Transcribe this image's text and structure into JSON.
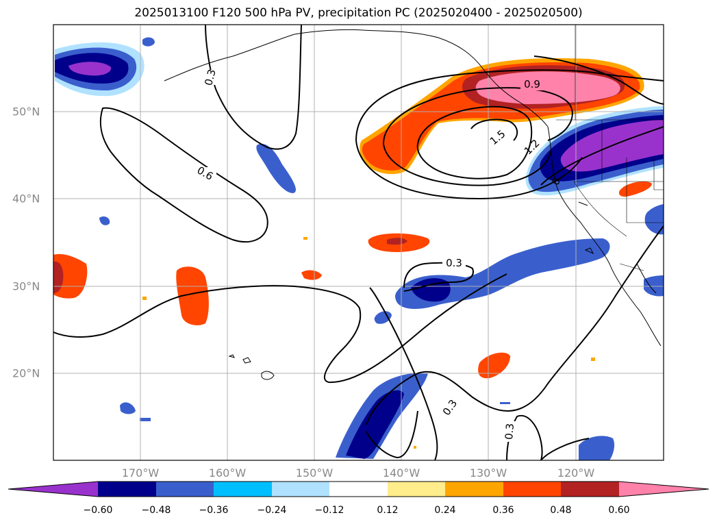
{
  "title": "2025013100 F120 500 hPa PV, precipitation PC (2025020400 - 2025020500)",
  "map": {
    "lon_ticks": [
      "170°W",
      "160°W",
      "150°W",
      "140°W",
      "130°W",
      "120°W"
    ],
    "lat_ticks": [
      "50°N",
      "40°N",
      "30°N",
      "20°N"
    ],
    "contour_labels": [
      "0.3",
      "0.6",
      "0.9",
      "1.2",
      "1.5",
      "0",
      "0.3",
      "0.3",
      "0.3"
    ],
    "colors": {
      "lt_purple": "#9932cc",
      "navy": "#00008b",
      "royal": "#3a5fcd",
      "sky": "#00bfff",
      "pale_blue": "#b0e2ff",
      "pale_yellow": "#ffec8b",
      "orange": "#ffa500",
      "orange_red": "#ff4500",
      "firebrick": "#b22222",
      "pink": "#ff82ab"
    }
  },
  "colorbar": {
    "ticks": [
      "−0.60",
      "−0.48",
      "−0.36",
      "−0.24",
      "−0.12",
      "0.12",
      "0.24",
      "0.36",
      "0.48",
      "0.60"
    ],
    "bins": [
      "#9932cc",
      "#00008b",
      "#3a5fcd",
      "#00bfff",
      "#b0e2ff",
      "#ffffff",
      "#ffec8b",
      "#ffa500",
      "#ff4500",
      "#b22222",
      "#ff82ab"
    ]
  }
}
